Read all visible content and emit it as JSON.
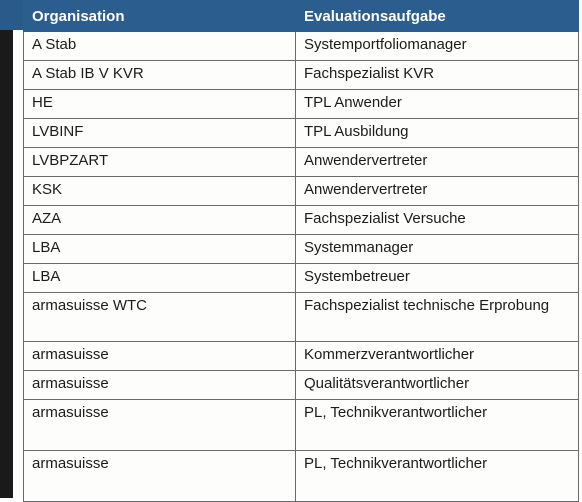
{
  "table": {
    "headers": {
      "organisation": "Organisation",
      "evaluationsaufgabe": "Evaluationsaufgabe"
    },
    "rows": [
      {
        "org": "A Stab",
        "task": "Systemportfoliomanager"
      },
      {
        "org": "A Stab IB V KVR",
        "task": "Fachspezialist KVR"
      },
      {
        "org": "HE",
        "task": "TPL Anwender"
      },
      {
        "org": "LVBINF",
        "task": "TPL Ausbildung"
      },
      {
        "org": "LVBPZART",
        "task": "Anwendervertreter"
      },
      {
        "org": "KSK",
        "task": "Anwendervertreter"
      },
      {
        "org": "AZA",
        "task": "Fachspezialist Versuche"
      },
      {
        "org": "LBA",
        "task": "Systemmanager"
      },
      {
        "org": "LBA",
        "task": "Systembetreuer"
      },
      {
        "org": "armasuisse WTC",
        "task": "Fachspezialist technische Erprobung"
      },
      {
        "org": "armasuisse",
        "task": "Kommerzverantwortlicher"
      },
      {
        "org": "armasuisse",
        "task": "Qualitätsverantwortlicher"
      },
      {
        "org": "armasuisse",
        "task": "PL, Technikverantwortlicher"
      },
      {
        "org": "armasuisse",
        "task": "PL, Technikverantwortlicher"
      }
    ]
  },
  "colors": {
    "header_bg": "#2c5d8f",
    "header_text": "#ffffff",
    "border": "#6a6a6a"
  }
}
